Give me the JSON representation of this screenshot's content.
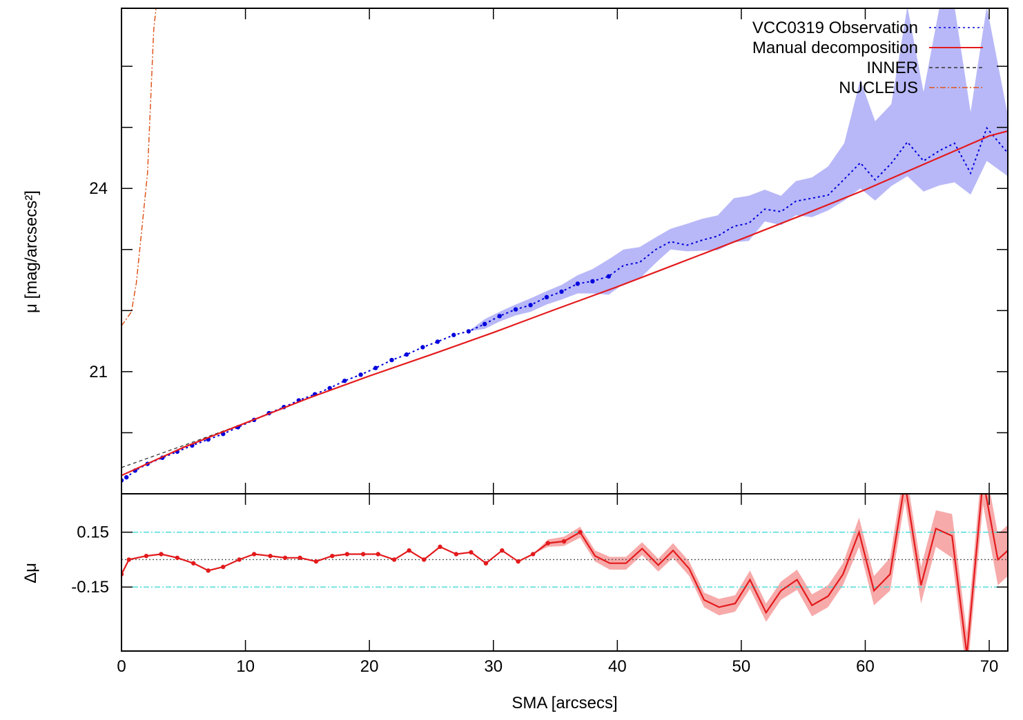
{
  "chart_data": [
    {
      "type": "line",
      "panel": "top",
      "ylabel": "μ [mag/arcsecs²]",
      "xlim": [
        0,
        71.5
      ],
      "ylim": [
        26.95,
        19.0
      ],
      "yticks": [
        20,
        21,
        22,
        23,
        24,
        25,
        26
      ],
      "yticklabels": [
        "",
        "21",
        "",
        "",
        "24",
        "",
        ""
      ],
      "grid": false,
      "legend_position": "top-right",
      "legend": [
        {
          "label": "VCC0319 Observation",
          "color": "#0000dd",
          "style": "dotted"
        },
        {
          "label": "Manual decomposition",
          "color": "#e31a1c",
          "style": "solid"
        },
        {
          "label": "INNER",
          "color": "#333333",
          "style": "dashed"
        },
        {
          "label": "NUCLEUS",
          "color": "#e0541a",
          "style": "dash-dot"
        }
      ],
      "series": [
        {
          "name": "VCC0319 Observation",
          "x": [
            0.0,
            0.4,
            1.1,
            2.1,
            3.3,
            4.5,
            5.7,
            7.0,
            8.2,
            9.4,
            10.7,
            11.9,
            13.1,
            14.3,
            15.6,
            16.8,
            18.0,
            19.3,
            20.5,
            21.8,
            23.0,
            24.3,
            25.5,
            26.8,
            28.0,
            29.3,
            30.5,
            31.8,
            33.0,
            34.3,
            35.5,
            36.8,
            38.0,
            39.3,
            40.5,
            41.8,
            43.1,
            44.3,
            45.6,
            46.8,
            48.1,
            49.4,
            50.6,
            51.9,
            53.2,
            54.4,
            55.7,
            57.0,
            58.3,
            59.6,
            60.8,
            62.1,
            63.4,
            64.7,
            66.0,
            67.2,
            68.5,
            69.8,
            71.5
          ],
          "y": [
            19.22,
            19.27,
            19.38,
            19.49,
            19.59,
            19.69,
            19.79,
            19.89,
            19.98,
            20.09,
            20.21,
            20.32,
            20.42,
            20.53,
            20.63,
            20.73,
            20.85,
            20.95,
            21.06,
            21.19,
            21.28,
            21.4,
            21.49,
            21.6,
            21.66,
            21.78,
            21.91,
            22.02,
            22.09,
            22.22,
            22.31,
            22.44,
            22.48,
            22.56,
            22.74,
            22.79,
            23.0,
            23.13,
            23.07,
            23.15,
            23.22,
            23.38,
            23.43,
            23.66,
            23.62,
            23.79,
            23.84,
            23.89,
            24.15,
            24.42,
            24.14,
            24.41,
            24.76,
            24.45,
            24.62,
            24.74,
            24.25,
            24.99,
            24.58
          ],
          "y_err_low": [
            19.22,
            19.27,
            19.38,
            19.49,
            19.59,
            19.69,
            19.79,
            19.89,
            19.98,
            20.09,
            20.21,
            20.32,
            20.42,
            20.53,
            20.63,
            20.73,
            20.85,
            20.95,
            21.06,
            21.19,
            21.28,
            21.4,
            21.49,
            21.6,
            21.66,
            21.7,
            21.82,
            21.92,
            21.98,
            22.1,
            22.18,
            22.28,
            22.28,
            22.26,
            22.44,
            22.52,
            22.78,
            23.0,
            22.97,
            22.98,
            22.99,
            23.12,
            23.14,
            23.46,
            23.4,
            23.56,
            23.53,
            23.64,
            23.8,
            24.0,
            23.8,
            24.04,
            24.2,
            23.95,
            24.05,
            24.1,
            23.9,
            24.45,
            24.2
          ],
          "y_err_high": [
            19.22,
            19.27,
            19.38,
            19.49,
            19.59,
            19.69,
            19.79,
            19.89,
            19.98,
            20.09,
            20.21,
            20.32,
            20.42,
            20.53,
            20.63,
            20.73,
            20.85,
            20.95,
            21.06,
            21.19,
            21.28,
            21.4,
            21.49,
            21.6,
            21.66,
            21.86,
            21.98,
            22.1,
            22.2,
            22.32,
            22.42,
            22.58,
            22.68,
            22.84,
            23.0,
            23.04,
            23.2,
            23.34,
            23.42,
            23.5,
            23.56,
            23.84,
            23.88,
            23.98,
            23.88,
            24.12,
            24.18,
            24.36,
            24.74,
            25.78,
            25.1,
            25.38,
            26.98,
            25.58,
            26.98,
            26.98,
            25.25,
            26.98,
            25.2
          ],
          "marker_x_max": 39.6
        },
        {
          "name": "Manual decomposition",
          "x": [
            0,
            5,
            10,
            15,
            20,
            25,
            30,
            35,
            40,
            45,
            50,
            55,
            60,
            65,
            70,
            71.5
          ],
          "y": [
            19.3,
            19.76,
            20.16,
            20.56,
            20.93,
            21.28,
            21.64,
            22.02,
            22.39,
            22.78,
            23.17,
            23.57,
            23.98,
            24.42,
            24.86,
            24.94
          ]
        },
        {
          "name": "INNER",
          "x": [
            0,
            5,
            10,
            15,
            20,
            25,
            30,
            35,
            40,
            45,
            50,
            55,
            60,
            65,
            70,
            71.5
          ],
          "y": [
            19.43,
            19.79,
            20.16,
            20.56,
            20.93,
            21.28,
            21.64,
            22.02,
            22.39,
            22.78,
            23.17,
            23.57,
            23.98,
            24.42,
            24.86,
            24.94
          ]
        },
        {
          "name": "NUCLEUS",
          "x": [
            0,
            0.8,
            1.2,
            1.6,
            2.1,
            2.6,
            2.8
          ],
          "y": [
            21.75,
            21.98,
            22.45,
            23.25,
            24.25,
            26.6,
            26.98
          ]
        }
      ]
    },
    {
      "type": "line",
      "panel": "bottom",
      "xlabel": "SMA [arcsecs]",
      "ylabel": "Δμ",
      "xlim": [
        0,
        71.5
      ],
      "ylim": [
        -0.5,
        0.36
      ],
      "xticks": [
        0,
        10,
        20,
        30,
        40,
        50,
        60,
        70
      ],
      "yticks": [
        0.15,
        -0.15
      ],
      "yticklabels": [
        "0.15",
        "-0.15"
      ],
      "reference_lines": [
        {
          "y": 0.15,
          "color": "#40d8d8",
          "style": "dash-dot"
        },
        {
          "y": -0.15,
          "color": "#40d8d8",
          "style": "dash-dot"
        },
        {
          "y": 0.0,
          "color": "#555555",
          "style": "dotted"
        }
      ],
      "series": [
        {
          "name": "",
          "color": "#e31a1c",
          "band_color": "#f7aaaa",
          "x": [
            0.0,
            0.6,
            2.0,
            3.2,
            4.5,
            5.8,
            7.0,
            8.2,
            9.5,
            10.7,
            12.0,
            13.2,
            14.4,
            15.7,
            17.0,
            18.2,
            19.5,
            20.7,
            22.0,
            23.2,
            24.4,
            25.7,
            27.0,
            28.2,
            29.4,
            30.7,
            32.0,
            33.2,
            34.4,
            35.7,
            37.0,
            38.2,
            39.4,
            40.7,
            42.0,
            43.3,
            44.5,
            45.8,
            47.0,
            48.2,
            49.5,
            50.7,
            52.0,
            53.2,
            54.5,
            55.7,
            57.0,
            58.2,
            59.5,
            60.7,
            62.0,
            63.2,
            64.5,
            65.7,
            67.0,
            68.2,
            69.5,
            70.7,
            71.5
          ],
          "y": [
            -0.08,
            0.0,
            0.02,
            0.03,
            0.01,
            -0.02,
            -0.06,
            -0.04,
            0.0,
            0.03,
            0.02,
            0.01,
            0.01,
            -0.01,
            0.02,
            0.03,
            0.03,
            0.03,
            0.0,
            0.05,
            0.0,
            0.07,
            0.03,
            0.04,
            -0.02,
            0.05,
            -0.01,
            0.03,
            0.09,
            0.1,
            0.15,
            0.02,
            -0.02,
            -0.02,
            0.06,
            -0.03,
            0.05,
            -0.05,
            -0.22,
            -0.26,
            -0.24,
            -0.11,
            -0.29,
            -0.17,
            -0.11,
            -0.25,
            -0.2,
            -0.08,
            0.15,
            -0.17,
            -0.08,
            0.42,
            -0.14,
            0.17,
            0.13,
            -0.52,
            0.44,
            0.0,
            0.05
          ],
          "band": [
            0.0,
            0.0,
            0.0,
            0.0,
            0.0,
            0.0,
            0.0,
            0.0,
            0.0,
            0.0,
            0.0,
            0.0,
            0.0,
            0.0,
            0.0,
            0.0,
            0.0,
            0.0,
            0.0,
            0.0,
            0.0,
            0.0,
            0.0,
            0.0,
            0.0,
            0.0,
            0.0,
            0.0,
            0.02,
            0.025,
            0.03,
            0.03,
            0.035,
            0.035,
            0.035,
            0.035,
            0.04,
            0.04,
            0.04,
            0.045,
            0.045,
            0.05,
            0.05,
            0.05,
            0.055,
            0.06,
            0.06,
            0.06,
            0.08,
            0.08,
            0.09,
            0.1,
            0.1,
            0.1,
            0.12,
            0.12,
            0.14,
            0.14,
            0.14
          ],
          "marker_x_max": 37.2
        }
      ]
    }
  ]
}
